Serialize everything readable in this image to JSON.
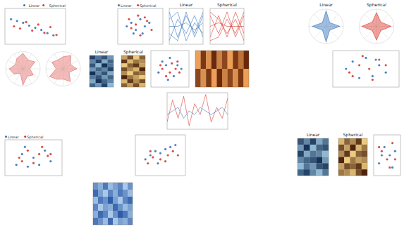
{
  "chart_data": [
    {
      "type": "scatter",
      "xlim": [
        0,
        10
      ],
      "ylim": [
        0,
        10
      ],
      "legend": "upper right",
      "tick_labels": false,
      "series": [
        {
          "name": "Linear",
          "color": "#2c6fbb",
          "x": [
            1,
            2,
            3,
            4,
            5,
            6,
            7,
            8
          ],
          "values": [
            7,
            6.5,
            6,
            5.2,
            4.6,
            4,
            3.1,
            2.5
          ]
        },
        {
          "name": "Spherical",
          "color": "#d73027",
          "x": [
            1.5,
            2.5,
            3.5,
            4.5,
            5.5,
            6.5,
            7.5,
            8.5
          ],
          "values": [
            5,
            4.4,
            6.2,
            3.8,
            5.5,
            3.2,
            4.8,
            2.6
          ]
        }
      ]
    },
    {
      "type": "scatter",
      "xlim": [
        0,
        10
      ],
      "ylim": [
        0,
        10
      ],
      "legend": "upper left",
      "tick_labels": false,
      "series": [
        {
          "name": "Linear",
          "color": "#2c6fbb",
          "x": [
            2,
            3,
            4,
            5,
            6,
            7,
            3.5,
            5.5
          ],
          "values": [
            5,
            6,
            4,
            7,
            5,
            6,
            3,
            3
          ]
        },
        {
          "name": "Spherical",
          "color": "#d73027",
          "x": [
            2.5,
            4.5,
            6.5,
            3,
            5,
            7.5,
            4,
            6
          ],
          "values": [
            7,
            8,
            6.5,
            4.5,
            2.5,
            4,
            5.5,
            7.5
          ]
        }
      ]
    },
    {
      "type": "line",
      "title": "Linear",
      "categories": [
        null,
        null,
        null,
        null,
        null
      ],
      "ylim": [
        0,
        1
      ],
      "tick_labels": false,
      "series": [
        {
          "color": "#2c6fbb",
          "values": [
            0.9,
            0.2,
            0.8,
            0.3,
            0.9
          ]
        },
        {
          "color": "#2c6fbb",
          "values": [
            0.1,
            0.7,
            0.3,
            0.8,
            0.2
          ]
        },
        {
          "color": "#2c6fbb",
          "values": [
            0.5,
            0.5,
            0.6,
            0.4,
            0.6
          ]
        },
        {
          "color": "#2c6fbb",
          "values": [
            0.7,
            0.9,
            0.1,
            0.6,
            0.3
          ]
        },
        {
          "color": "#2c6fbb",
          "values": [
            0.3,
            0.1,
            0.9,
            0.2,
            0.8
          ]
        }
      ]
    },
    {
      "type": "line",
      "title": "Spherical",
      "categories": [
        null,
        null,
        null,
        null,
        null
      ],
      "ylim": [
        0,
        1
      ],
      "tick_labels": false,
      "series": [
        {
          "color": "#d73027",
          "values": [
            0.8,
            0.3,
            0.9,
            0.2,
            0.8
          ]
        },
        {
          "color": "#d73027",
          "values": [
            0.2,
            0.8,
            0.2,
            0.9,
            0.3
          ]
        },
        {
          "color": "#d73027",
          "values": [
            0.5,
            0.6,
            0.5,
            0.5,
            0.5
          ]
        },
        {
          "color": "#d73027",
          "values": [
            0.9,
            0.7,
            0.3,
            0.7,
            0.1
          ]
        },
        {
          "color": "#d73027",
          "values": [
            0.1,
            0.2,
            0.7,
            0.3,
            0.9
          ]
        }
      ]
    },
    {
      "type": "radar",
      "title": "Linear",
      "categories": [
        null,
        null,
        null,
        null,
        null,
        null,
        null,
        null
      ],
      "ylim": [
        0,
        1
      ],
      "tick_labels": false,
      "series": [
        {
          "color": "#2c6fbb",
          "values": [
            0.9,
            0.3,
            0.8,
            0.3,
            0.9,
            0.3,
            0.8,
            0.3
          ]
        }
      ]
    },
    {
      "type": "radar",
      "title": "Spherical",
      "categories": [
        null,
        null,
        null,
        null,
        null,
        null,
        null,
        null
      ],
      "ylim": [
        0,
        1
      ],
      "tick_labels": false,
      "series": [
        {
          "color": "#d73027",
          "values": [
            0.8,
            0.35,
            0.85,
            0.35,
            0.8,
            0.35,
            0.85,
            0.35
          ]
        }
      ]
    },
    {
      "type": "heatmap",
      "title": "Linear",
      "zlim": [
        0,
        1
      ],
      "colors": [
        "#08214a",
        "#9ecae1"
      ],
      "cells": [
        [
          0.2,
          0.5,
          0.3,
          0.7
        ],
        [
          0.6,
          0.2,
          0.8,
          0.4
        ],
        [
          0.3,
          0.9,
          0.1,
          0.5
        ],
        [
          0.7,
          0.4,
          0.6,
          0.2
        ],
        [
          0.1,
          0.6,
          0.3,
          0.8
        ],
        [
          0.5,
          0.3,
          0.7,
          0.4
        ],
        [
          0.8,
          0.1,
          0.4,
          0.6
        ],
        [
          0.4,
          0.7,
          0.2,
          0.9
        ]
      ]
    },
    {
      "type": "heatmap",
      "title": "Spherical",
      "zlim": [
        0,
        1
      ],
      "colors": [
        "#3b0f00",
        "#fee08b"
      ],
      "cells": [
        [
          0.7,
          0.3,
          0.9,
          0.4
        ],
        [
          0.2,
          0.8,
          0.5,
          0.6
        ],
        [
          0.9,
          0.4,
          0.2,
          0.7
        ],
        [
          0.3,
          0.6,
          0.8,
          0.1
        ],
        [
          0.6,
          0.9,
          0.4,
          0.5
        ],
        [
          0.1,
          0.5,
          0.7,
          0.9
        ],
        [
          0.8,
          0.2,
          0.6,
          0.3
        ],
        [
          0.4,
          0.7,
          0.3,
          0.8
        ]
      ]
    },
    {
      "type": "scatter",
      "xlim": [
        0,
        10
      ],
      "ylim": [
        0,
        10
      ],
      "tick_labels": false,
      "series": [
        {
          "color": "#2c6fbb",
          "x": [
            2,
            4,
            6,
            8,
            3,
            5,
            7,
            4.5
          ],
          "values": [
            4,
            6,
            3,
            5,
            7,
            8,
            6,
            2
          ]
        },
        {
          "color": "#d73027",
          "x": [
            3,
            5,
            7,
            2.5,
            6.5,
            4,
            5.5,
            7.5
          ],
          "values": [
            5,
            4,
            7,
            6,
            5,
            3,
            6.5,
            4
          ]
        }
      ]
    },
    {
      "type": "heatmap",
      "zlim": [
        0,
        1
      ],
      "colors": [
        "#5a1a00",
        "#fdae61"
      ],
      "cells": [
        [
          0.9,
          0.2,
          0.8,
          0.1,
          0.7,
          0.3,
          0.9,
          0.2,
          0.6,
          0.1
        ],
        [
          0.3,
          0.8,
          0.2,
          0.9,
          0.1,
          0.7,
          0.3,
          0.8,
          0.2,
          0.9
        ]
      ]
    },
    {
      "type": "line",
      "x": [
        0,
        1,
        2,
        3,
        4,
        5,
        6,
        7,
        8,
        9,
        10,
        11
      ],
      "xlim": [
        0,
        11
      ],
      "ylim": [
        0,
        1
      ],
      "tick_labels": false,
      "series": [
        {
          "color": "#d73027",
          "values": [
            0.2,
            0.8,
            0.3,
            0.9,
            0.1,
            0.7,
            0.4,
            0.95,
            0.2,
            0.6,
            0.3,
            0.85
          ]
        },
        {
          "color": "#2c6fbb",
          "values": [
            0.4,
            0.5,
            0.6,
            0.3,
            0.5,
            0.4,
            0.6,
            0.5,
            0.4,
            0.5,
            0.6,
            0.4
          ]
        }
      ]
    },
    {
      "type": "scatter",
      "xlim": [
        0,
        10
      ],
      "ylim": [
        0,
        10
      ],
      "legend": "upper left",
      "tick_labels": false,
      "series": [
        {
          "name": "Linear",
          "color": "#2c6fbb",
          "x": [
            2,
            3,
            5,
            7,
            8,
            4,
            6,
            3.5
          ],
          "values": [
            3,
            6,
            5,
            7,
            4,
            2.5,
            3,
            8
          ]
        },
        {
          "name": "Spherical",
          "color": "#d73027",
          "x": [
            2.5,
            4,
            6,
            7.5,
            3,
            5,
            8,
            6.5
          ],
          "values": [
            5,
            7,
            6,
            5.5,
            4,
            3.5,
            6,
            8
          ]
        }
      ]
    },
    {
      "type": "heatmap",
      "title": "Linear",
      "zlim": [
        0,
        1
      ],
      "colors": [
        "#08214a",
        "#9ecae1"
      ],
      "cells": [
        [
          0.3,
          0.6,
          0.2,
          0.8,
          0.5
        ],
        [
          0.7,
          0.1,
          0.9,
          0.4,
          0.3
        ],
        [
          0.2,
          0.8,
          0.5,
          0.6,
          0.9
        ],
        [
          0.6,
          0.4,
          0.3,
          0.1,
          0.7
        ],
        [
          0.9,
          0.5,
          0.7,
          0.3,
          0.2
        ],
        [
          0.4,
          0.2,
          0.6,
          0.9,
          0.5
        ]
      ]
    },
    {
      "type": "heatmap",
      "title": "Spherical",
      "zlim": [
        0,
        1
      ],
      "colors": [
        "#3b0f00",
        "#fee08b"
      ],
      "cells": [
        [
          0.8,
          0.4,
          0.6,
          0.2,
          0.9
        ],
        [
          0.3,
          0.7,
          0.1,
          0.8,
          0.5
        ],
        [
          0.6,
          0.2,
          0.9,
          0.4,
          0.3
        ],
        [
          0.1,
          0.9,
          0.5,
          0.7,
          0.6
        ],
        [
          0.7,
          0.3,
          0.4,
          0.2,
          0.8
        ],
        [
          0.5,
          0.6,
          0.8,
          0.3,
          0.1
        ]
      ]
    },
    {
      "type": "scatter",
      "xlim": [
        0,
        10
      ],
      "ylim": [
        0,
        10
      ],
      "tick_labels": false,
      "series": [
        {
          "color": "#2c6fbb",
          "x": [
            2,
            4,
            6,
            8,
            3,
            7
          ],
          "values": [
            3,
            7,
            5,
            6,
            5,
            2
          ]
        },
        {
          "color": "#d73027",
          "x": [
            3,
            5,
            7,
            2,
            6,
            8
          ],
          "values": [
            6,
            4,
            8,
            7,
            2,
            4
          ]
        }
      ]
    },
    {
      "type": "scatter",
      "xlim": [
        0,
        10
      ],
      "ylim": [
        0,
        10
      ],
      "tick_labels": false,
      "series": [
        {
          "color": "#2c6fbb",
          "x": [
            2,
            3,
            4,
            5,
            6,
            7,
            8,
            4.5
          ],
          "values": [
            4,
            5,
            6,
            5.5,
            6.5,
            7,
            7.5,
            3
          ]
        },
        {
          "color": "#d73027",
          "x": [
            2.5,
            3.5,
            5,
            6.5,
            7.5,
            3,
            6,
            8.5
          ],
          "values": [
            3,
            4.5,
            4,
            5,
            6,
            6,
            3.5,
            5
          ]
        }
      ]
    },
    {
      "type": "heatmap",
      "zlim": [
        0,
        1
      ],
      "colors": [
        "#1f4fa0",
        "#b9d7f2"
      ],
      "cells": [
        [
          0.5,
          0.7,
          0.3,
          0.8,
          0.6,
          0.4,
          0.9,
          0.5
        ],
        [
          0.2,
          0.6,
          0.9,
          0.4,
          0.7,
          0.3,
          0.5,
          0.8
        ],
        [
          0.8,
          0.3,
          0.5,
          0.1,
          0.6,
          0.9,
          0.4,
          0.2
        ],
        [
          0.4,
          0.9,
          0.6,
          0.7,
          0.2,
          0.5,
          0.8,
          0.6
        ],
        [
          0.7,
          0.2,
          0.4,
          0.9,
          0.5,
          0.1,
          0.3,
          0.7
        ],
        [
          0.3,
          0.5,
          0.8,
          0.2,
          0.9,
          0.6,
          0.7,
          0.4
        ]
      ]
    },
    {
      "type": "radar",
      "categories": [
        null,
        null,
        null,
        null,
        null,
        null,
        null,
        null,
        null,
        null,
        null,
        null
      ],
      "ylim": [
        0,
        1
      ],
      "tick_labels": false,
      "series": [
        {
          "color": "#e06a63",
          "values": [
            0.9,
            0.6,
            0.8,
            0.4,
            0.7,
            0.5,
            0.95,
            0.3,
            0.6,
            0.8,
            0.5,
            0.7
          ]
        }
      ]
    },
    {
      "type": "radar",
      "categories": [
        null,
        null,
        null,
        null,
        null,
        null,
        null,
        null,
        null,
        null,
        null,
        null
      ],
      "ylim": [
        0,
        1
      ],
      "tick_labels": false,
      "series": [
        {
          "color": "#e06a63",
          "values": [
            0.7,
            0.9,
            0.5,
            0.8,
            0.4,
            0.85,
            0.6,
            0.7,
            0.9,
            0.4,
            0.75,
            0.6
          ]
        }
      ]
    },
    {
      "type": "scatter",
      "xlim": [
        0,
        10
      ],
      "ylim": [
        0,
        10
      ],
      "tick_labels": false,
      "series": [
        {
          "color": "#2c6fbb",
          "x": [
            2,
            3,
            5,
            6,
            7,
            8,
            4,
            6.5
          ],
          "values": [
            5,
            7,
            8,
            3,
            6,
            4,
            2.5,
            7.5
          ]
        },
        {
          "color": "#d73027",
          "x": [
            2.5,
            4,
            5.5,
            7,
            3,
            8,
            6,
            4.5
          ],
          "values": [
            4,
            6,
            5,
            7.5,
            3,
            6,
            2,
            8.5
          ]
        }
      ]
    }
  ]
}
